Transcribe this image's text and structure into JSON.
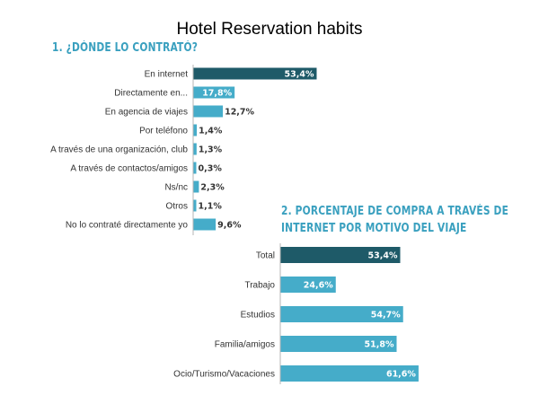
{
  "slide": {
    "title": "Hotel Reservation habits"
  },
  "chart_data": [
    {
      "type": "bar",
      "orientation": "horizontal",
      "title": "1. ¿DÓNDE LO CONTRATÓ?",
      "categories": [
        "En internet",
        "Directamente en...",
        "En agencia de viajes",
        "Por teléfono",
        "A través de una organización, club",
        "A través de contactos/amigos",
        "Ns/nc",
        "Otros",
        "No lo contraté directamente yo"
      ],
      "values": [
        53.4,
        17.8,
        12.7,
        1.4,
        1.3,
        0.3,
        2.3,
        1.1,
        9.6
      ],
      "value_labels": [
        "53,4%",
        "17,8%",
        "12,7%",
        "1,4%",
        "1,3%",
        "0,3%",
        "2,3%",
        "1,1%",
        "9,6%"
      ],
      "highlight_index": 0,
      "colors": {
        "highlight": "#1e5a68",
        "bar": "#45acc9",
        "label_inside": "#ffffff",
        "label_outside": "#333333"
      }
    },
    {
      "type": "bar",
      "orientation": "horizontal",
      "title_lines": [
        "2. PORCENTAJE DE COMPRA A TRAVÉS DE",
        "INTERNET POR MOTIVO DEL VIAJE"
      ],
      "categories": [
        "Total",
        "Trabajo",
        "Estudios",
        "Familia/amigos",
        "Ocio/Turismo/Vacaciones"
      ],
      "values": [
        53.4,
        24.6,
        54.7,
        51.8,
        61.6
      ],
      "value_labels": [
        "53,4%",
        "24,6%",
        "54,7%",
        "51,8%",
        "61,6%"
      ],
      "highlight_index": 0,
      "colors": {
        "highlight": "#1e5a68",
        "bar": "#45acc9",
        "label_inside": "#ffffff"
      }
    }
  ]
}
